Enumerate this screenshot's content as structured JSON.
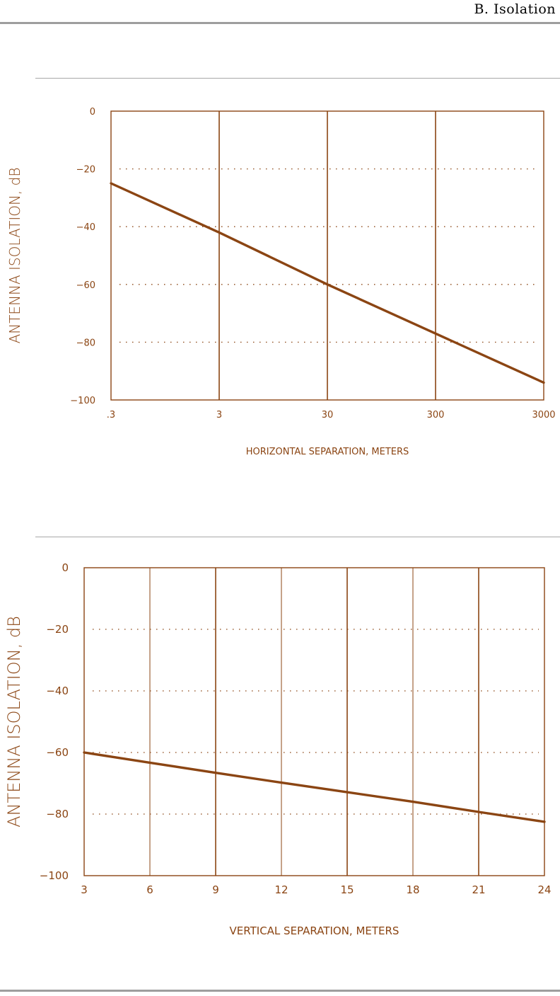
{
  "header": {
    "title": "B.  Isolation"
  },
  "colors": {
    "accent": "#8B4513",
    "rule": "#9e9e9e"
  },
  "chart_data": [
    {
      "type": "line",
      "xscale": "log",
      "x_tick_labels": [
        ".3",
        "3",
        "30",
        "300",
        "3000"
      ],
      "x_tick_values": [
        0.3,
        3,
        30,
        300,
        3000
      ],
      "y_tick_labels": [
        "0",
        "−20",
        "−40",
        "−60",
        "−80",
        "−100"
      ],
      "y_tick_values": [
        0,
        -20,
        -40,
        -60,
        -80,
        -100
      ],
      "xlabel": "HORIZONTAL  SEPARATION,  METERS",
      "ylabel": "ANTENNA  ISOLATION,  dB",
      "xlim": [
        0.3,
        3000
      ],
      "ylim": [
        -100,
        0
      ],
      "grid": "dotted horizontal, solid vertical",
      "series": [
        {
          "x": [
            0.3,
            3,
            30,
            300,
            3000
          ],
          "y": [
            -25,
            -42,
            -60,
            -77,
            -94
          ]
        }
      ]
    },
    {
      "type": "line",
      "xscale": "linear",
      "x_tick_labels": [
        "3",
        "6",
        "9",
        "12",
        "15",
        "18",
        "21",
        "24"
      ],
      "x_tick_values": [
        3,
        6,
        9,
        12,
        15,
        18,
        21,
        24
      ],
      "y_tick_labels": [
        "0",
        "−20",
        "−40",
        "−60",
        "−80",
        "−100"
      ],
      "y_tick_values": [
        0,
        -20,
        -40,
        -60,
        -80,
        -100
      ],
      "xlabel": "VERTICAL  SEPARATION,  METERS",
      "ylabel": "ANTENNA  ISOLATION,  dB",
      "xlim": [
        3,
        24
      ],
      "ylim": [
        -100,
        0
      ],
      "grid": "dotted horizontal, solid vertical",
      "series": [
        {
          "x": [
            3,
            6,
            9,
            12,
            15,
            18,
            21,
            24
          ],
          "y": [
            -60,
            -63.3,
            -66.6,
            -69.8,
            -72.9,
            -76,
            -79.3,
            -82.5
          ]
        }
      ]
    }
  ]
}
